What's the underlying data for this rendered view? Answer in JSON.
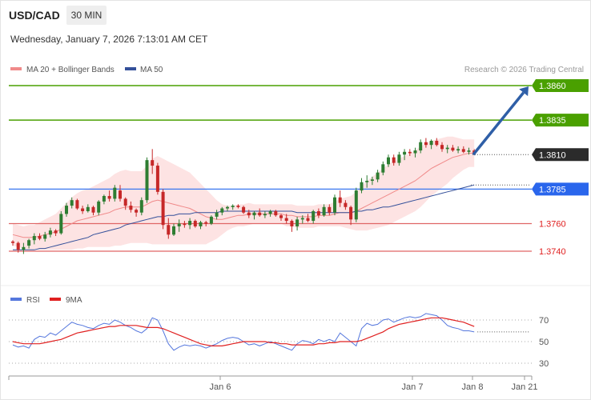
{
  "header": {
    "pair": "USD/CAD",
    "timeframe": "30 MIN",
    "datetime": "Wednesday, January 7, 2026 7:13:01 AM CET"
  },
  "legend": {
    "ma20_label": "MA 20 + Bollinger Bands",
    "ma50_label": "MA 50",
    "credit": "Research © 2026 Trading Central"
  },
  "colors": {
    "ma20": "#f08a8a",
    "ma50": "#34509a",
    "band_fill": "#fde3e3",
    "target": "#4aa000",
    "support_line": "#3a77f0",
    "support_label": "#2a66ec",
    "resistance_red": "#e06666",
    "last_price": "#2b2b2b",
    "bull": "#2e7d32",
    "bear": "#c62828",
    "arrow": "#2f5fa7",
    "rsi": "#5577dd",
    "rsi_ma": "#e02020"
  },
  "price_levels": [
    {
      "value": 1.386,
      "label": "1.3860",
      "style": "box",
      "color": "#4aa000"
    },
    {
      "value": 1.3835,
      "label": "1.3835",
      "style": "box",
      "color": "#4aa000"
    },
    {
      "value": 1.381,
      "label": "1.3810",
      "style": "box",
      "color": "#2b2b2b"
    },
    {
      "value": 1.3785,
      "label": "1.3785",
      "style": "box",
      "color": "#2a66ec"
    },
    {
      "value": 1.376,
      "label": "1.3760",
      "style": "text",
      "color": "#e02020"
    },
    {
      "value": 1.374,
      "label": "1.3740",
      "style": "text",
      "color": "#e02020"
    }
  ],
  "rsi_panel": {
    "rsi_label": "RSI",
    "ma_label": "9MA",
    "ticks": [
      "70",
      "50",
      "30"
    ]
  },
  "x_axis": {
    "labels": [
      "Jan 6",
      "Jan 7",
      "Jan 8",
      "Jan 21"
    ]
  },
  "chart_data": {
    "type": "candlestick",
    "y_range": [
      1.3722,
      1.3875
    ],
    "candles": [
      [
        1.3747,
        1.3748,
        1.3744,
        1.3746
      ],
      [
        1.3746,
        1.3747,
        1.3739,
        1.3741
      ],
      [
        1.3741,
        1.3746,
        1.3738,
        1.3743
      ],
      [
        1.3744,
        1.3749,
        1.3742,
        1.3748
      ],
      [
        1.3748,
        1.3753,
        1.3745,
        1.3751
      ],
      [
        1.3751,
        1.3753,
        1.3748,
        1.3749
      ],
      [
        1.3749,
        1.3754,
        1.3747,
        1.3752
      ],
      [
        1.3752,
        1.3757,
        1.375,
        1.3755
      ],
      [
        1.3755,
        1.3756,
        1.3751,
        1.3753
      ],
      [
        1.3753,
        1.3769,
        1.3752,
        1.3767
      ],
      [
        1.3767,
        1.3775,
        1.3765,
        1.3773
      ],
      [
        1.3773,
        1.3779,
        1.3771,
        1.3777
      ],
      [
        1.3777,
        1.3778,
        1.377,
        1.3771
      ],
      [
        1.3771,
        1.3773,
        1.3767,
        1.3769
      ],
      [
        1.3769,
        1.3774,
        1.3768,
        1.3772
      ],
      [
        1.3772,
        1.3773,
        1.3766,
        1.3768
      ],
      [
        1.3768,
        1.3777,
        1.3766,
        1.3776
      ],
      [
        1.3776,
        1.3781,
        1.3774,
        1.378
      ],
      [
        1.378,
        1.3784,
        1.3776,
        1.3778
      ],
      [
        1.3778,
        1.3788,
        1.3776,
        1.3786
      ],
      [
        1.3784,
        1.3788,
        1.3776,
        1.3778
      ],
      [
        1.3778,
        1.3779,
        1.377,
        1.3773
      ],
      [
        1.3773,
        1.3776,
        1.3768,
        1.377
      ],
      [
        1.377,
        1.3771,
        1.3765,
        1.3768
      ],
      [
        1.3768,
        1.3779,
        1.3766,
        1.3777
      ],
      [
        1.3777,
        1.3808,
        1.3775,
        1.3806
      ],
      [
        1.3806,
        1.3814,
        1.3796,
        1.3802
      ],
      [
        1.3802,
        1.3804,
        1.3781,
        1.3783
      ],
      [
        1.3783,
        1.3785,
        1.3756,
        1.3759
      ],
      [
        1.3759,
        1.3764,
        1.3749,
        1.3752
      ],
      [
        1.3752,
        1.376,
        1.3751,
        1.3758
      ],
      [
        1.3758,
        1.3763,
        1.3754,
        1.376
      ],
      [
        1.376,
        1.3762,
        1.3757,
        1.3759
      ],
      [
        1.3759,
        1.3764,
        1.3756,
        1.3762
      ],
      [
        1.3762,
        1.3763,
        1.3757,
        1.3758
      ],
      [
        1.3758,
        1.3762,
        1.3756,
        1.3761
      ],
      [
        1.3761,
        1.3762,
        1.3758,
        1.376
      ],
      [
        1.376,
        1.3766,
        1.3759,
        1.3765
      ],
      [
        1.3765,
        1.377,
        1.3763,
        1.3768
      ],
      [
        1.3768,
        1.3772,
        1.3766,
        1.3771
      ],
      [
        1.3771,
        1.3773,
        1.3769,
        1.3772
      ],
      [
        1.3772,
        1.3774,
        1.377,
        1.3773
      ],
      [
        1.3773,
        1.3774,
        1.3771,
        1.3772
      ],
      [
        1.3772,
        1.3773,
        1.3767,
        1.3768
      ],
      [
        1.3768,
        1.377,
        1.3764,
        1.3766
      ],
      [
        1.3766,
        1.3769,
        1.3763,
        1.3768
      ],
      [
        1.3768,
        1.3771,
        1.3765,
        1.3766
      ],
      [
        1.3766,
        1.3769,
        1.3764,
        1.3767
      ],
      [
        1.3767,
        1.377,
        1.3765,
        1.3769
      ],
      [
        1.3769,
        1.377,
        1.3765,
        1.3766
      ],
      [
        1.3766,
        1.3767,
        1.3762,
        1.3764
      ],
      [
        1.3764,
        1.3767,
        1.376,
        1.3762
      ],
      [
        1.3762,
        1.3763,
        1.3754,
        1.3758
      ],
      [
        1.3758,
        1.3765,
        1.3755,
        1.3763
      ],
      [
        1.3763,
        1.3766,
        1.376,
        1.3764
      ],
      [
        1.3764,
        1.3767,
        1.3761,
        1.3762
      ],
      [
        1.3762,
        1.377,
        1.376,
        1.3769
      ],
      [
        1.3769,
        1.3771,
        1.3764,
        1.3766
      ],
      [
        1.3766,
        1.3774,
        1.3765,
        1.3772
      ],
      [
        1.3772,
        1.3774,
        1.3766,
        1.3768
      ],
      [
        1.3768,
        1.3781,
        1.3766,
        1.3779
      ],
      [
        1.3779,
        1.3784,
        1.3772,
        1.3775
      ],
      [
        1.3775,
        1.3777,
        1.377,
        1.3772
      ],
      [
        1.3772,
        1.3773,
        1.3759,
        1.3763
      ],
      [
        1.3763,
        1.3786,
        1.3761,
        1.3784
      ],
      [
        1.3784,
        1.3793,
        1.3782,
        1.379
      ],
      [
        1.379,
        1.3795,
        1.3786,
        1.3791
      ],
      [
        1.3791,
        1.3794,
        1.3788,
        1.3792
      ],
      [
        1.3792,
        1.3799,
        1.379,
        1.3797
      ],
      [
        1.3797,
        1.3805,
        1.3795,
        1.3803
      ],
      [
        1.3803,
        1.381,
        1.3801,
        1.3808
      ],
      [
        1.3808,
        1.381,
        1.3802,
        1.3804
      ],
      [
        1.3804,
        1.3812,
        1.3802,
        1.381
      ],
      [
        1.381,
        1.3814,
        1.3806,
        1.3812
      ],
      [
        1.3812,
        1.3814,
        1.3809,
        1.3811
      ],
      [
        1.3811,
        1.3815,
        1.3808,
        1.3813
      ],
      [
        1.3813,
        1.3821,
        1.3811,
        1.3819
      ],
      [
        1.3819,
        1.3822,
        1.3815,
        1.3817
      ],
      [
        1.3817,
        1.3821,
        1.3814,
        1.382
      ],
      [
        1.382,
        1.3822,
        1.3816,
        1.3817
      ],
      [
        1.3817,
        1.3819,
        1.3812,
        1.3814
      ],
      [
        1.3814,
        1.3817,
        1.3811,
        1.3815
      ],
      [
        1.3815,
        1.3817,
        1.3812,
        1.3813
      ],
      [
        1.3813,
        1.3816,
        1.3811,
        1.3814
      ],
      [
        1.3814,
        1.3816,
        1.3811,
        1.3812
      ],
      [
        1.3812,
        1.3815,
        1.381,
        1.3813
      ],
      [
        1.3813,
        1.3814,
        1.381,
        1.3811
      ]
    ],
    "ma20": [
      1.3752,
      1.3751,
      1.375,
      1.375,
      1.375,
      1.3751,
      1.3752,
      1.3753,
      1.3754,
      1.3756,
      1.3758,
      1.376,
      1.3762,
      1.3763,
      1.3764,
      1.3765,
      1.3766,
      1.3767,
      1.3768,
      1.377,
      1.3771,
      1.3772,
      1.3772,
      1.3772,
      1.3772,
      1.3774,
      1.3776,
      1.3777,
      1.3776,
      1.3775,
      1.3774,
      1.3773,
      1.3772,
      1.3771,
      1.3769,
      1.3767,
      1.3765,
      1.3764,
      1.3763,
      1.3763,
      1.3764,
      1.3765,
      1.3766,
      1.3766,
      1.3767,
      1.3767,
      1.3767,
      1.3767,
      1.3767,
      1.3767,
      1.3767,
      1.3766,
      1.3766,
      1.3765,
      1.3765,
      1.3765,
      1.3765,
      1.3766,
      1.3766,
      1.3766,
      1.3767,
      1.3768,
      1.3768,
      1.3768,
      1.3769,
      1.3771,
      1.3773,
      1.3775,
      1.3777,
      1.3779,
      1.3781,
      1.3783,
      1.3785,
      1.3787,
      1.3789,
      1.3791,
      1.3794,
      1.3797,
      1.38,
      1.3802,
      1.3804,
      1.3806,
      1.3808,
      1.3809,
      1.381,
      1.3811,
      1.3811
    ],
    "ma50": [
      1.3741,
      1.3741,
      1.3741,
      1.3741,
      1.3741,
      1.3742,
      1.3742,
      1.3743,
      1.3744,
      1.3745,
      1.3746,
      1.3747,
      1.3748,
      1.3749,
      1.375,
      1.3752,
      1.3753,
      1.3754,
      1.3755,
      1.3756,
      1.3757,
      1.3759,
      1.376,
      1.3761,
      1.3762,
      1.3763,
      1.3764,
      1.3765,
      1.3765,
      1.3766,
      1.3766,
      1.3767,
      1.3767,
      1.3767,
      1.3768,
      1.3768,
      1.3768,
      1.3768,
      1.3768,
      1.3769,
      1.3769,
      1.3769,
      1.3769,
      1.3769,
      1.3769,
      1.3769,
      1.3769,
      1.3769,
      1.3769,
      1.3769,
      1.3769,
      1.3769,
      1.3769,
      1.3768,
      1.3768,
      1.3768,
      1.3768,
      1.3768,
      1.3768,
      1.3768,
      1.3768,
      1.3768,
      1.3768,
      1.3768,
      1.3769,
      1.3769,
      1.377,
      1.377,
      1.3771,
      1.3772,
      1.3772,
      1.3773,
      1.3774,
      1.3775,
      1.3776,
      1.3777,
      1.3778,
      1.3779,
      1.378,
      1.3781,
      1.3782,
      1.3783,
      1.3784,
      1.3785,
      1.3786,
      1.3787,
      1.3788
    ],
    "bb_width": [
      0.0008,
      0.0008,
      0.0008,
      0.0009,
      0.0009,
      0.001,
      0.0011,
      0.0012,
      0.0013,
      0.0015,
      0.0017,
      0.0019,
      0.002,
      0.0021,
      0.0021,
      0.0022,
      0.0023,
      0.0024,
      0.0025,
      0.0026,
      0.0027,
      0.0027,
      0.0026,
      0.0026,
      0.0026,
      0.0028,
      0.0031,
      0.0032,
      0.0031,
      0.003,
      0.0029,
      0.0028,
      0.0027,
      0.0026,
      0.0024,
      0.0022,
      0.002,
      0.0017,
      0.0014,
      0.0011,
      0.0009,
      0.0008,
      0.0008,
      0.0008,
      0.0008,
      0.0007,
      0.0007,
      0.0007,
      0.0007,
      0.0007,
      0.0007,
      0.0008,
      0.0008,
      0.0008,
      0.0008,
      0.0008,
      0.0008,
      0.0008,
      0.0008,
      0.0008,
      0.0009,
      0.001,
      0.0011,
      0.0012,
      0.0014,
      0.0016,
      0.0018,
      0.0019,
      0.002,
      0.0021,
      0.0022,
      0.0022,
      0.0022,
      0.0022,
      0.0022,
      0.0022,
      0.0022,
      0.0021,
      0.002,
      0.0019,
      0.0018,
      0.0017,
      0.0015,
      0.0013,
      0.0011,
      0.001,
      0.001
    ],
    "projection": {
      "from": 1.381,
      "to": 1.386
    },
    "rsi": {
      "y_range": [
        20,
        80
      ],
      "rsi": [
        47,
        45,
        46,
        44,
        52,
        55,
        54,
        58,
        56,
        60,
        64,
        68,
        66,
        65,
        63,
        62,
        65,
        67,
        66,
        70,
        68,
        65,
        63,
        60,
        58,
        62,
        72,
        70,
        60,
        48,
        42,
        45,
        47,
        46,
        47,
        46,
        44,
        46,
        48,
        51,
        53,
        54,
        53,
        50,
        47,
        48,
        46,
        48,
        50,
        48,
        46,
        44,
        42,
        48,
        51,
        50,
        48,
        52,
        50,
        52,
        50,
        58,
        54,
        50,
        46,
        62,
        67,
        65,
        66,
        70,
        71,
        68,
        70,
        72,
        73,
        72,
        73,
        76,
        75,
        74,
        70,
        65,
        63,
        62,
        60,
        60,
        59
      ],
      "ma9": [
        50,
        49,
        48,
        48,
        48,
        48,
        49,
        50,
        51,
        52,
        54,
        56,
        58,
        59,
        60,
        61,
        62,
        63,
        64,
        64,
        65,
        65,
        65,
        65,
        64,
        63,
        63,
        63,
        62,
        60,
        58,
        56,
        54,
        52,
        50,
        48,
        47,
        46,
        46,
        46,
        47,
        48,
        49,
        50,
        50,
        50,
        50,
        50,
        49,
        49,
        48,
        48,
        47,
        47,
        47,
        47,
        47,
        48,
        48,
        49,
        49,
        50,
        50,
        50,
        50,
        51,
        53,
        55,
        57,
        59,
        62,
        64,
        66,
        67,
        68,
        69,
        70,
        71,
        72,
        72,
        72,
        71,
        70,
        69,
        68,
        66,
        64
      ]
    }
  }
}
